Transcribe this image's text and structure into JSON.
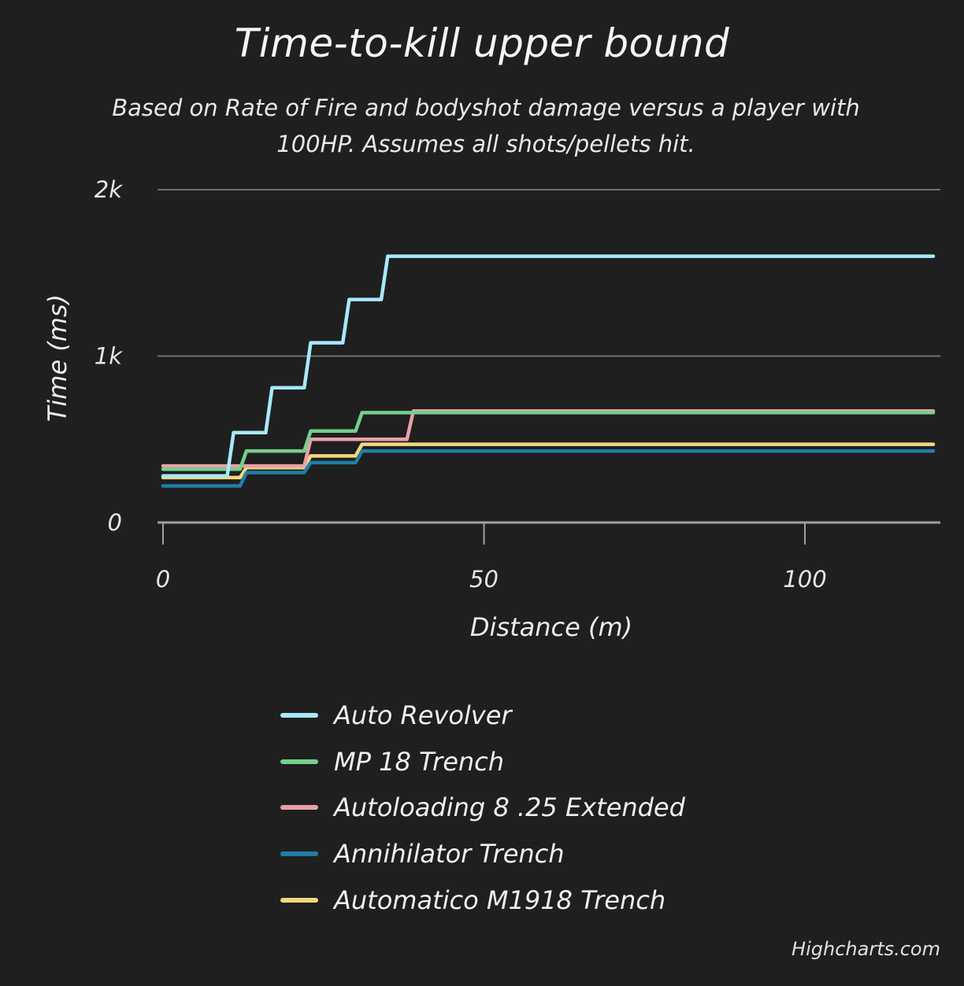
{
  "chart_data": {
    "type": "line",
    "step": true,
    "title": "Time-to-kill upper bound",
    "subtitle": "Based on Rate of Fire and bodyshot damage versus a player with 100HP. Assumes all shots/pellets hit.",
    "xlabel": "Distance (m)",
    "ylabel": "Time (ms)",
    "xlim": [
      0,
      120
    ],
    "ylim": [
      0,
      2000
    ],
    "x_ticks": [
      0,
      50,
      100
    ],
    "x_tick_labels": [
      "0",
      "50",
      "100"
    ],
    "y_ticks": [
      0,
      1000,
      2000
    ],
    "y_tick_labels": [
      "0",
      "1k",
      "2k"
    ],
    "grid": "horizontal",
    "legend_position": "bottom",
    "series": [
      {
        "name": "Auto Revolver",
        "color": "#a8e8fb",
        "points": [
          [
            0,
            280
          ],
          [
            10,
            280
          ],
          [
            11,
            540
          ],
          [
            16,
            540
          ],
          [
            17,
            810
          ],
          [
            22,
            810
          ],
          [
            23,
            1080
          ],
          [
            28,
            1080
          ],
          [
            29,
            1340
          ],
          [
            34,
            1340
          ],
          [
            35,
            1600
          ],
          [
            120,
            1600
          ]
        ]
      },
      {
        "name": "MP 18 Trench",
        "color": "#74cf8c",
        "points": [
          [
            0,
            320
          ],
          [
            12,
            320
          ],
          [
            13,
            430
          ],
          [
            22,
            430
          ],
          [
            23,
            550
          ],
          [
            30,
            550
          ],
          [
            31,
            660
          ],
          [
            120,
            660
          ]
        ]
      },
      {
        "name": "Autoloading 8 .25 Extended",
        "color": "#e8a0a5",
        "points": [
          [
            0,
            340
          ],
          [
            22,
            340
          ],
          [
            23,
            500
          ],
          [
            38,
            500
          ],
          [
            39,
            670
          ],
          [
            120,
            670
          ]
        ]
      },
      {
        "name": "Annihilator Trench",
        "color": "#1f7ea8",
        "points": [
          [
            0,
            220
          ],
          [
            12,
            220
          ],
          [
            13,
            300
          ],
          [
            22,
            300
          ],
          [
            23,
            360
          ],
          [
            30,
            360
          ],
          [
            31,
            430
          ],
          [
            120,
            430
          ]
        ]
      },
      {
        "name": "Automatico M1918 Trench",
        "color": "#f3d77a",
        "points": [
          [
            0,
            270
          ],
          [
            12,
            270
          ],
          [
            13,
            330
          ],
          [
            22,
            330
          ],
          [
            23,
            400
          ],
          [
            30,
            400
          ],
          [
            31,
            470
          ],
          [
            120,
            470
          ]
        ]
      }
    ]
  },
  "credits": "Highcharts.com"
}
